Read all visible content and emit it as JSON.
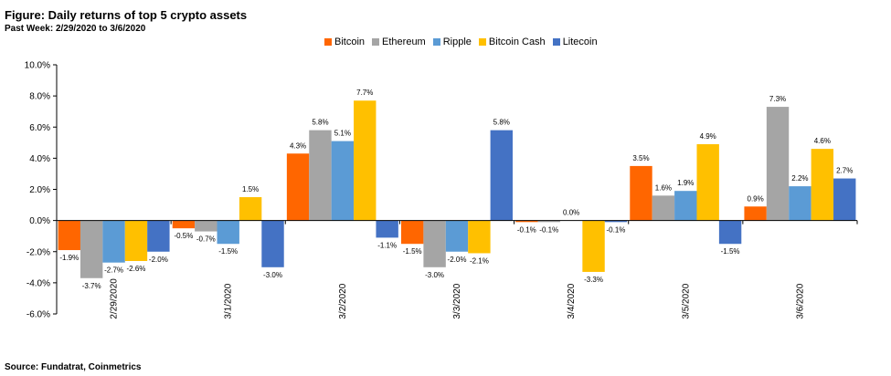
{
  "title": "Figure: Daily returns of top 5 crypto assets",
  "subtitle": "Past Week: 2/29/2020 to 3/6/2020",
  "source": "Source: Fundatrat, Coinmetrics",
  "chart_data": {
    "type": "bar",
    "title": "Figure: Daily returns of top 5 crypto assets",
    "subtitle": "Past Week: 2/29/2020 to 3/6/2020",
    "categories": [
      "2/29/2020",
      "3/1/2020",
      "3/2/2020",
      "3/3/2020",
      "3/4/2020",
      "3/5/2020",
      "3/6/2020"
    ],
    "series": [
      {
        "name": "Bitcoin",
        "color": "#ff6600",
        "values": [
          -1.9,
          -0.5,
          4.3,
          -1.5,
          -0.1,
          3.5,
          0.9
        ]
      },
      {
        "name": "Ethereum",
        "color": "#a5a5a5",
        "values": [
          -3.7,
          -0.7,
          5.8,
          -3.0,
          -0.1,
          1.6,
          7.3
        ]
      },
      {
        "name": "Ripple",
        "color": "#5b9bd5",
        "values": [
          -2.7,
          -1.5,
          5.1,
          -2.0,
          0.0,
          1.9,
          2.2
        ]
      },
      {
        "name": "Bitcoin Cash",
        "color": "#ffc000",
        "values": [
          -2.6,
          1.5,
          7.7,
          -2.1,
          -3.3,
          4.9,
          4.6
        ]
      },
      {
        "name": "Litecoin",
        "color": "#4472c4",
        "values": [
          -2.0,
          -3.0,
          -1.1,
          5.8,
          -0.1,
          -1.5,
          2.7
        ]
      }
    ],
    "data_labels": [
      [
        "-1.9%",
        "-3.7%",
        "-2.7%",
        "-2.6%",
        "-2.0%"
      ],
      [
        "-0.5%",
        "-0.7%",
        "-1.5%",
        "1.5%",
        "-3.0%"
      ],
      [
        "4.3%",
        "5.8%",
        "5.1%",
        "7.7%",
        "-1.1%"
      ],
      [
        "-1.5%",
        "-3.0%",
        "-2.0%",
        "-2.1%",
        "5.8%"
      ],
      [
        "-0.1%",
        "-0.1%",
        "0.0%",
        "-3.3%",
        "-0.1%"
      ],
      [
        "3.5%",
        "1.6%",
        "1.9%",
        "4.9%",
        "-1.5%"
      ],
      [
        "0.9%",
        "7.3%",
        "2.2%",
        "4.6%",
        "2.7%"
      ]
    ],
    "yticks": [
      "-6.0%",
      "-4.0%",
      "-2.0%",
      "0.0%",
      "2.0%",
      "4.0%",
      "6.0%",
      "8.0%",
      "10.0%"
    ],
    "ylim": [
      -6,
      10
    ],
    "legend_position": "top",
    "grid": false,
    "xlabel": "",
    "ylabel": ""
  }
}
